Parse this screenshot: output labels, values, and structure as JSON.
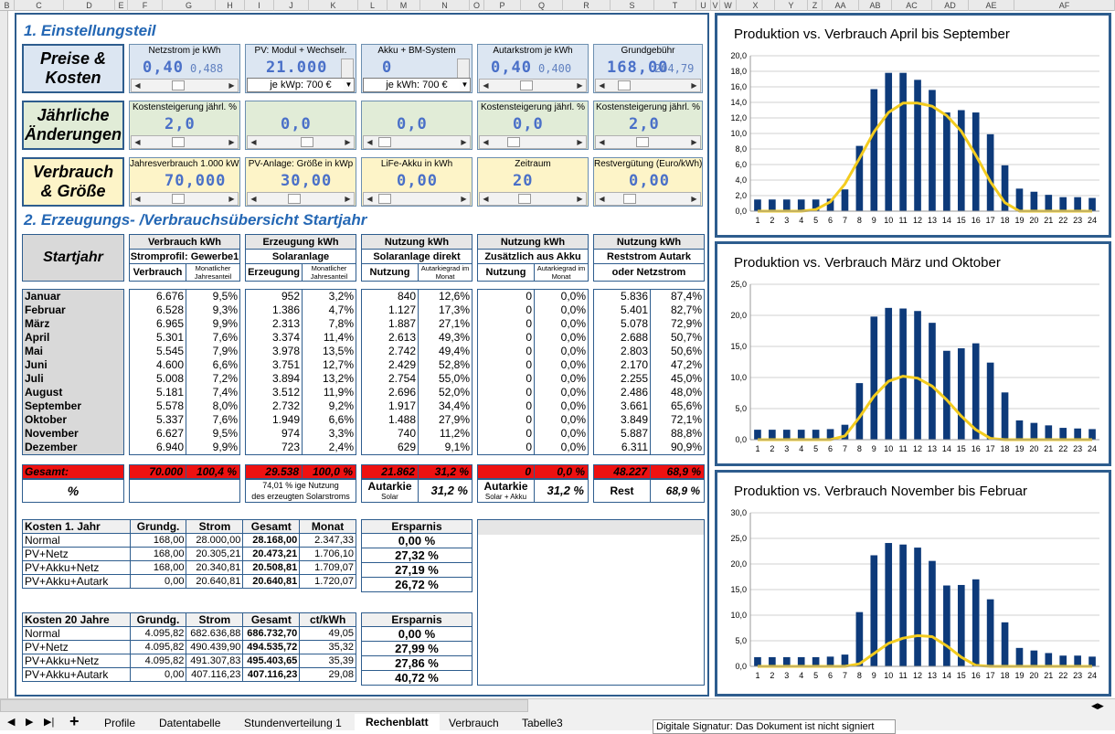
{
  "colheaders": [
    "B",
    "C",
    "D",
    "E",
    "F",
    "G",
    "H",
    "I",
    "J",
    "K",
    "L",
    "M",
    "N",
    "O",
    "P",
    "Q",
    "R",
    "S",
    "T",
    "U",
    "V",
    "W",
    "X",
    "Y",
    "Z",
    "AA",
    "AB",
    "AC",
    "AD",
    "AE",
    "AF"
  ],
  "sec1": "1. Einstellungsteil",
  "sec2": "2. Erzeugungs- /Verbrauchsübersicht Startjahr",
  "row1": [
    "Preise &",
    "Kosten"
  ],
  "row2": [
    "Jährliche",
    "Änderungen"
  ],
  "row3": [
    "Verbrauch",
    "& Größe"
  ],
  "ctrls_r1": [
    {
      "title": "Netzstrom je kWh",
      "big": "0,40",
      "small": "0,488"
    },
    {
      "title": "PV: Modul + Wechselr.",
      "big": "21.000",
      "dd": "je kWp:  700 €"
    },
    {
      "title": "Akku + BM-System",
      "big": "0",
      "dd": "je kWh:  700 €"
    },
    {
      "title": "Autarkstrom je kWh",
      "big": "0,40",
      "small": "0,400"
    },
    {
      "title": "Grundgebühr",
      "big": "168,00",
      "small": "204,79"
    }
  ],
  "ctrls_r2": [
    {
      "title": "Kostensteigerung jährl. %",
      "big": "2,0"
    },
    {
      "title": "",
      "big": "0,0"
    },
    {
      "title": "",
      "big": "0,0"
    },
    {
      "title": "Kostensteigerung jährl. %",
      "big": "0,0"
    },
    {
      "title": "Kostensteigerung jährl. %",
      "big": "2,0"
    }
  ],
  "ctrls_r3": [
    {
      "title": "Jahresverbrauch 1.000 kWh",
      "big": "70,000"
    },
    {
      "title": "PV-Anlage: Größe in kWp",
      "big": "30,00"
    },
    {
      "title": "LiFe-Akku in kWh",
      "big": "0,00"
    },
    {
      "title": "Zeitraum",
      "big": "20"
    },
    {
      "title": "Restvergütung (Euro/kWh)",
      "big": "0,00"
    }
  ],
  "startjahr": "Startjahr",
  "grp": [
    {
      "h1": "Verbrauch kWh",
      "h2": "Stromprofil: Gewerbe1",
      "c1": "Verbrauch",
      "c2": "Monatlicher Jahresanteil"
    },
    {
      "h1": "Erzeugung kWh",
      "h2": "Solaranlage",
      "c1": "Erzeugung",
      "c2": "Monatlicher Jahresanteil"
    },
    {
      "h1": "Nutzung kWh",
      "h2": "Solaranlage direkt",
      "c1": "Nutzung",
      "c2": "Autarkiegrad im Monat"
    },
    {
      "h1": "Nutzung kWh",
      "h2": "Zusätzlich aus Akku",
      "c1": "Nutzung",
      "c2": "Autarkiegrad im Monat"
    },
    {
      "h1": "Nutzung kWh",
      "h2": "Reststrom Autark",
      "c1": "oder Netzstrom",
      "c2": ""
    }
  ],
  "months": [
    "Januar",
    "Februar",
    "März",
    "April",
    "Mai",
    "Juni",
    "Juli",
    "August",
    "September",
    "Oktober",
    "November",
    "Dezember"
  ],
  "cols": [
    [
      [
        "6.676",
        "9,5%"
      ],
      [
        "6.528",
        "9,3%"
      ],
      [
        "6.965",
        "9,9%"
      ],
      [
        "5.301",
        "7,6%"
      ],
      [
        "5.545",
        "7,9%"
      ],
      [
        "4.600",
        "6,6%"
      ],
      [
        "5.008",
        "7,2%"
      ],
      [
        "5.181",
        "7,4%"
      ],
      [
        "5.578",
        "8,0%"
      ],
      [
        "5.337",
        "7,6%"
      ],
      [
        "6.627",
        "9,5%"
      ],
      [
        "6.940",
        "9,9%"
      ]
    ],
    [
      [
        "952",
        "3,2%"
      ],
      [
        "1.386",
        "4,7%"
      ],
      [
        "2.313",
        "7,8%"
      ],
      [
        "3.374",
        "11,4%"
      ],
      [
        "3.978",
        "13,5%"
      ],
      [
        "3.751",
        "12,7%"
      ],
      [
        "3.894",
        "13,2%"
      ],
      [
        "3.512",
        "11,9%"
      ],
      [
        "2.732",
        "9,2%"
      ],
      [
        "1.949",
        "6,6%"
      ],
      [
        "974",
        "3,3%"
      ],
      [
        "723",
        "2,4%"
      ]
    ],
    [
      [
        "840",
        "12,6%"
      ],
      [
        "1.127",
        "17,3%"
      ],
      [
        "1.887",
        "27,1%"
      ],
      [
        "2.613",
        "49,3%"
      ],
      [
        "2.742",
        "49,4%"
      ],
      [
        "2.429",
        "52,8%"
      ],
      [
        "2.754",
        "55,0%"
      ],
      [
        "2.696",
        "52,0%"
      ],
      [
        "1.917",
        "34,4%"
      ],
      [
        "1.488",
        "27,9%"
      ],
      [
        "740",
        "11,2%"
      ],
      [
        "629",
        "9,1%"
      ]
    ],
    [
      [
        "0",
        "0,0%"
      ],
      [
        "0",
        "0,0%"
      ],
      [
        "0",
        "0,0%"
      ],
      [
        "0",
        "0,0%"
      ],
      [
        "0",
        "0,0%"
      ],
      [
        "0",
        "0,0%"
      ],
      [
        "0",
        "0,0%"
      ],
      [
        "0",
        "0,0%"
      ],
      [
        "0",
        "0,0%"
      ],
      [
        "0",
        "0,0%"
      ],
      [
        "0",
        "0,0%"
      ],
      [
        "0",
        "0,0%"
      ]
    ],
    [
      [
        "5.836",
        "87,4%"
      ],
      [
        "5.401",
        "82,7%"
      ],
      [
        "5.078",
        "72,9%"
      ],
      [
        "2.688",
        "50,7%"
      ],
      [
        "2.803",
        "50,6%"
      ],
      [
        "2.170",
        "47,2%"
      ],
      [
        "2.255",
        "45,0%"
      ],
      [
        "2.486",
        "48,0%"
      ],
      [
        "3.661",
        "65,6%"
      ],
      [
        "3.849",
        "72,1%"
      ],
      [
        "5.887",
        "88,8%"
      ],
      [
        "6.311",
        "90,9%"
      ]
    ]
  ],
  "gesamt_label": "Gesamt:",
  "gesamt": [
    [
      "70.000",
      "100,4 %"
    ],
    [
      "29.538",
      "100,0 %"
    ],
    [
      "21.862",
      "31,2 %"
    ],
    [
      "0",
      "0,0 %"
    ],
    [
      "48.227",
      "68,9 %"
    ]
  ],
  "pct_label": "%",
  "pct_note": [
    "74,01 % ige Nutzung",
    "des erzeugten Solarstroms"
  ],
  "autarkie1": {
    "l1": "Autarkie",
    "l2": "Solar",
    "v": "31,2 %"
  },
  "autarkie2": {
    "l1": "Autarkie",
    "l2": "Solar + Akku",
    "v": "31,2 %"
  },
  "rest": {
    "l": "Rest",
    "v": "68,9 %"
  },
  "k1": {
    "hdr": [
      "Kosten 1. Jahr",
      "Grundg.",
      "Strom",
      "Gesamt",
      "Monat",
      "Ersparnis"
    ],
    "rows": [
      [
        "Normal",
        "168,00",
        "28.000,00",
        "28.168,00",
        "2.347,33",
        "0,00 %"
      ],
      [
        "PV+Netz",
        "168,00",
        "20.305,21",
        "20.473,21",
        "1.706,10",
        "27,32 %"
      ],
      [
        "PV+Akku+Netz",
        "168,00",
        "20.340,81",
        "20.508,81",
        "1.709,07",
        "27,19 %"
      ],
      [
        "PV+Akku+Autark",
        "0,00",
        "20.640,81",
        "20.640,81",
        "1.720,07",
        "26,72 %"
      ]
    ]
  },
  "k20": {
    "hdr": [
      "Kosten 20 Jahre",
      "Grundg.",
      "Strom",
      "Gesamt",
      "ct/kWh",
      "Ersparnis"
    ],
    "rows": [
      [
        "Normal",
        "4.095,82",
        "682.636,88",
        "686.732,70",
        "49,05",
        "0,00 %"
      ],
      [
        "PV+Netz",
        "4.095,82",
        "490.439,90",
        "494.535,72",
        "35,32",
        "27,99 %"
      ],
      [
        "PV+Akku+Netz",
        "4.095,82",
        "491.307,83",
        "495.403,65",
        "35,39",
        "27,86 %"
      ],
      [
        "PV+Akku+Autark",
        "0,00",
        "407.116,23",
        "407.116,23",
        "29,08",
        "40,72 %"
      ]
    ]
  },
  "chart_data": [
    {
      "type": "bar",
      "title": "Produktion vs. Verbrauch April bis September",
      "categories": [
        "1",
        "2",
        "3",
        "4",
        "5",
        "6",
        "7",
        "8",
        "9",
        "10",
        "11",
        "12",
        "13",
        "14",
        "15",
        "16",
        "17",
        "18",
        "19",
        "20",
        "21",
        "22",
        "23",
        "24"
      ],
      "series": [
        {
          "values": [
            1.5,
            1.5,
            1.5,
            1.5,
            1.5,
            1.6,
            2.8,
            8.4,
            15.7,
            17.8,
            17.8,
            16.9,
            15.6,
            12.7,
            13.0,
            12.7,
            9.9,
            5.9,
            2.9,
            2.5,
            2.1,
            1.8,
            1.8,
            1.7
          ],
          "color": "#0d3a7a"
        },
        {
          "values": [
            0,
            0,
            0,
            0,
            0.2,
            1.2,
            3.5,
            6.8,
            10.2,
            12.7,
            13.9,
            13.9,
            13.5,
            12.3,
            10.3,
            7.2,
            3.8,
            1.1,
            0,
            0,
            0,
            0,
            0,
            0
          ],
          "color": "#f3cc1f"
        }
      ],
      "ylim": [
        0,
        20
      ],
      "yticks": [
        "0,0",
        "2,0",
        "4,0",
        "6,0",
        "8,0",
        "10,0",
        "12,0",
        "14,0",
        "16,0",
        "18,0",
        "20,0"
      ]
    },
    {
      "type": "bar",
      "title": "Produktion vs. Verbrauch März und Oktober",
      "categories": [
        "1",
        "2",
        "3",
        "4",
        "5",
        "6",
        "7",
        "8",
        "9",
        "10",
        "11",
        "12",
        "13",
        "14",
        "15",
        "16",
        "17",
        "18",
        "19",
        "20",
        "21",
        "22",
        "23",
        "24"
      ],
      "series": [
        {
          "values": [
            1.6,
            1.6,
            1.6,
            1.6,
            1.6,
            1.7,
            2.4,
            9.1,
            19.8,
            21.2,
            21.1,
            20.7,
            18.8,
            14.3,
            14.7,
            15.5,
            12.4,
            7.6,
            3.1,
            2.7,
            2.3,
            1.9,
            1.8,
            1.7
          ],
          "color": "#0d3a7a"
        },
        {
          "values": [
            0,
            0,
            0,
            0,
            0,
            0,
            0.6,
            3.6,
            7.0,
            9.4,
            10.2,
            9.9,
            8.6,
            6.4,
            3.8,
            1.6,
            0.2,
            0,
            0,
            0,
            0,
            0,
            0,
            0
          ],
          "color": "#f3cc1f"
        }
      ],
      "ylim": [
        0,
        25
      ],
      "yticks": [
        "0,0",
        "5,0",
        "10,0",
        "15,0",
        "20,0",
        "25,0"
      ]
    },
    {
      "type": "bar",
      "title": "Produktion vs. Verbrauch November bis Februar",
      "categories": [
        "1",
        "2",
        "3",
        "4",
        "5",
        "6",
        "7",
        "8",
        "9",
        "10",
        "11",
        "12",
        "13",
        "14",
        "15",
        "16",
        "17",
        "18",
        "19",
        "20",
        "21",
        "22",
        "23",
        "24"
      ],
      "series": [
        {
          "values": [
            1.8,
            1.8,
            1.8,
            1.8,
            1.8,
            1.9,
            2.3,
            10.6,
            21.7,
            24.1,
            23.8,
            23.2,
            20.6,
            15.8,
            15.9,
            17.0,
            13.1,
            8.6,
            3.6,
            3.1,
            2.6,
            2.1,
            2.1,
            1.9
          ],
          "color": "#0d3a7a"
        },
        {
          "values": [
            0,
            0,
            0,
            0,
            0,
            0,
            0,
            0.5,
            2.5,
            4.5,
            5.5,
            6.0,
            5.8,
            4.0,
            1.8,
            0.2,
            0,
            0,
            0,
            0,
            0,
            0,
            0,
            0
          ],
          "color": "#f3cc1f"
        }
      ],
      "ylim": [
        0,
        30
      ],
      "yticks": [
        "0,0",
        "5,0",
        "10,0",
        "15,0",
        "20,0",
        "25,0",
        "30,0"
      ]
    }
  ],
  "tabs": [
    "Profile",
    "Datentabelle",
    "Stundenverteilung 1",
    "Rechenblatt",
    "Verbrauch",
    "Tabelle3"
  ],
  "status": "Digitale Signatur: Das Dokument ist nicht signiert"
}
